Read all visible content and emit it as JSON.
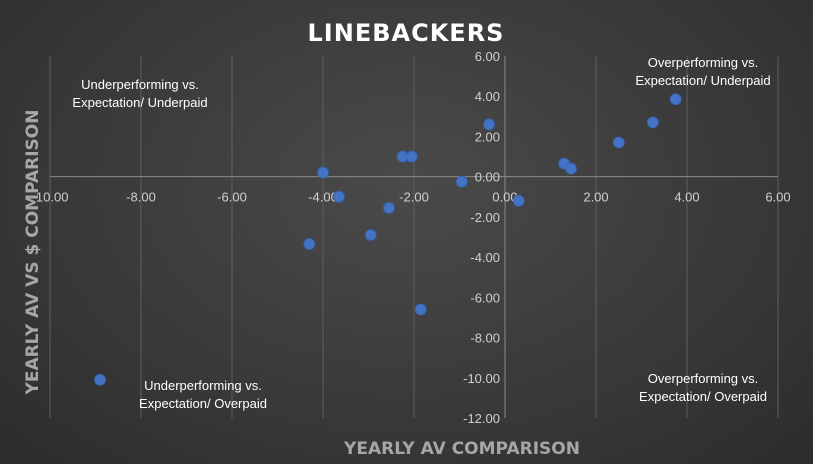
{
  "chart_data": {
    "type": "scatter",
    "title": "LINEBACKERS",
    "xlabel": "YEARLY AV COMPARISON",
    "ylabel": "YEARLY AV VS $ COMPARISON",
    "xlim": [
      -10,
      6
    ],
    "ylim": [
      -12,
      6
    ],
    "xticks": [
      "-10.00",
      "-8.00",
      "-6.00",
      "-4.00",
      "-2.00",
      "0.00",
      "2.00",
      "4.00",
      "6.00"
    ],
    "yticks": [
      "6.00",
      "4.00",
      "2.00",
      "0.00",
      "-2.00",
      "-4.00",
      "-6.00",
      "-8.00",
      "-10.00",
      "-12.00"
    ],
    "series": [
      {
        "color": "#4472c4",
        "points": [
          {
            "x": -8.9,
            "y": -10.1
          },
          {
            "x": -4.3,
            "y": -3.35
          },
          {
            "x": -4.0,
            "y": 0.2
          },
          {
            "x": -3.65,
            "y": -1.0
          },
          {
            "x": -2.95,
            "y": -2.9
          },
          {
            "x": -2.55,
            "y": -1.55
          },
          {
            "x": -2.25,
            "y": 1.0
          },
          {
            "x": -2.05,
            "y": 1.0
          },
          {
            "x": -1.85,
            "y": -6.6
          },
          {
            "x": -0.95,
            "y": -0.25
          },
          {
            "x": -0.35,
            "y": 2.6
          },
          {
            "x": 0.3,
            "y": -1.2
          },
          {
            "x": 1.3,
            "y": 0.65
          },
          {
            "x": 1.45,
            "y": 0.4
          },
          {
            "x": 2.5,
            "y": 1.7
          },
          {
            "x": 3.25,
            "y": 2.7
          },
          {
            "x": 3.75,
            "y": 3.85
          }
        ]
      }
    ],
    "quadrant_labels": {
      "top_left": [
        "Underperforming vs.",
        "Expectation/ Underpaid"
      ],
      "top_right": [
        "Overperforming vs.",
        "Expectation/ Underpaid"
      ],
      "bottom_left": [
        "Underperforming vs.",
        "Expectation/ Overpaid"
      ],
      "bottom_right": [
        "Overperforming vs.",
        "Expectation/ Overpaid"
      ]
    },
    "grid": "vertical",
    "legend": "none"
  }
}
